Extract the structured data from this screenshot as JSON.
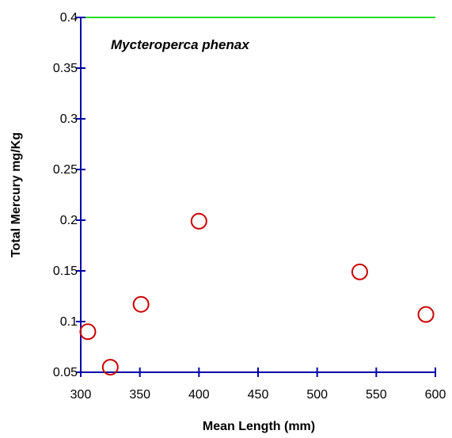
{
  "chart_data": {
    "type": "scatter",
    "title": "",
    "annotation": "Mycteroperca phenax",
    "xlabel": "Mean Length (mm)",
    "ylabel": "Total Mercury mg/Kg",
    "xlim": [
      300,
      600
    ],
    "ylim": [
      0.05,
      0.4
    ],
    "x_ticks": [
      300,
      350,
      400,
      450,
      500,
      550,
      600
    ],
    "y_ticks": [
      0.05,
      0.1,
      0.15,
      0.2,
      0.25,
      0.3,
      0.35,
      0.4
    ],
    "x_tick_labels": [
      "300",
      "350",
      "400",
      "450",
      "500",
      "550",
      "600"
    ],
    "y_tick_labels": [
      "0.05",
      "0.1",
      "0.15",
      "0.2",
      "0.25",
      "0.3",
      "0.35",
      "0.4"
    ],
    "reference_line": {
      "y": 0.4,
      "color": "#22dd22"
    },
    "series": [
      {
        "marker": "open-circle",
        "color": "#cc0000",
        "points": [
          {
            "x": 306,
            "y": 0.09
          },
          {
            "x": 325,
            "y": 0.055
          },
          {
            "x": 351,
            "y": 0.117
          },
          {
            "x": 400,
            "y": 0.199
          },
          {
            "x": 536,
            "y": 0.149
          },
          {
            "x": 592,
            "y": 0.107
          }
        ]
      }
    ],
    "axis_color": "#0000aa",
    "grid": false
  }
}
